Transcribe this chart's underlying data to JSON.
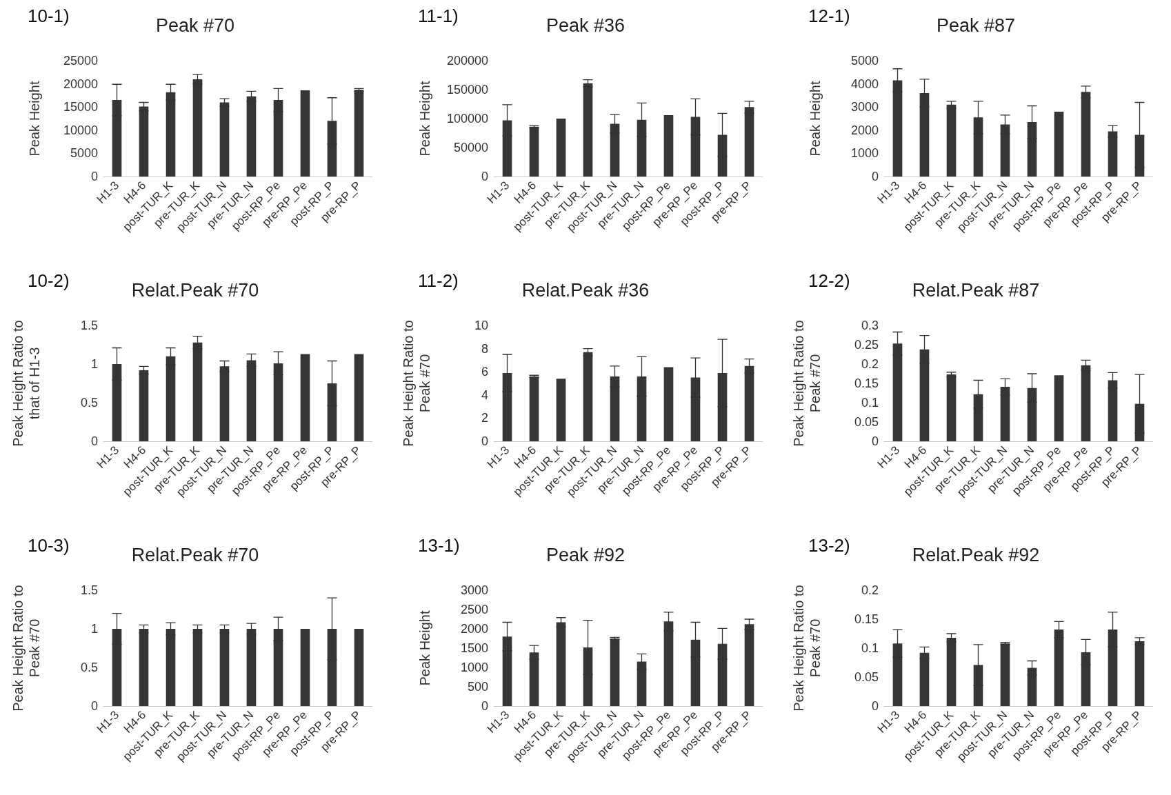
{
  "chart_data": [
    {
      "type": "bar",
      "title": "Peak #70",
      "annotations": [
        "10-1)"
      ],
      "ylabel": "Peak Height",
      "categories": [
        "H1-3",
        "H4-6",
        "post-TUR_K",
        "pre-TUR_K",
        "post-TUR_N",
        "pre-TUR_N",
        "post-RP_Pe",
        "pre-RP_Pe",
        "post-RP_P",
        "pre-RP_P"
      ],
      "color": "#363636",
      "values": [
        16500,
        15100,
        18200,
        21000,
        16000,
        17300,
        16500,
        18600,
        12000,
        18700
      ],
      "errors": [
        3400,
        900,
        1700,
        1000,
        800,
        1100,
        2500,
        null,
        5000,
        300
      ],
      "ylim": [
        0,
        25000
      ],
      "yticks": [
        0,
        5000,
        10000,
        15000,
        20000,
        25000
      ]
    },
    {
      "type": "bar",
      "title": "Peak #36",
      "annotations": [
        "11-1)"
      ],
      "ylabel": "Peak Height",
      "categories": [
        "H1-3",
        "H4-6",
        "post-TUR_K",
        "pre-TUR_K",
        "post-TUR_N",
        "pre-TUR_N",
        "post-RP_Pe",
        "pre-RP_Pe",
        "post-RP_P",
        "pre-RP_P"
      ],
      "color": "#363636",
      "values": [
        97000,
        86000,
        100000,
        161000,
        91000,
        98000,
        106000,
        103000,
        72000,
        120000
      ],
      "errors": [
        27000,
        2000,
        null,
        6000,
        16000,
        29000,
        null,
        31000,
        37000,
        10000
      ],
      "ylim": [
        0,
        200000
      ],
      "yticks": [
        0,
        50000,
        100000,
        150000,
        200000
      ]
    },
    {
      "type": "bar",
      "title": "Peak #87",
      "annotations": [
        "12-1)"
      ],
      "ylabel": "Peak Height",
      "categories": [
        "H1-3",
        "H4-6",
        "post-TUR_K",
        "pre-TUR_K",
        "post-TUR_N",
        "pre-TUR_N",
        "post-RP_Pe",
        "pre-RP_Pe",
        "post-RP_P",
        "pre-RP_P"
      ],
      "color": "#363636",
      "values": [
        4150,
        3600,
        3100,
        2550,
        2250,
        2350,
        2800,
        3650,
        1950,
        1800
      ],
      "errors": [
        500,
        600,
        150,
        700,
        400,
        700,
        null,
        250,
        250,
        1400
      ],
      "ylim": [
        0,
        5000
      ],
      "yticks": [
        0,
        1000,
        2000,
        3000,
        4000,
        5000
      ]
    },
    {
      "type": "bar",
      "title": "Relat.Peak #70",
      "annotations": [
        "10-2)"
      ],
      "ylabel": "Peak Height Ratio to\nthat of H1-3",
      "categories": [
        "H1-3",
        "H4-6",
        "post-TUR_K",
        "pre-TUR_K",
        "post-TUR_N",
        "pre-TUR_N",
        "post-RP_Pe",
        "pre-RP_Pe",
        "post-RP_P",
        "pre-RP_P"
      ],
      "color": "#363636",
      "values": [
        1.0,
        0.92,
        1.1,
        1.28,
        0.97,
        1.05,
        1.01,
        1.13,
        0.75,
        1.13
      ],
      "errors": [
        0.21,
        0.05,
        0.11,
        0.08,
        0.07,
        0.08,
        0.15,
        null,
        0.29,
        null
      ],
      "ylim": [
        0,
        1.5
      ],
      "yticks": [
        0,
        0.5,
        1,
        1.5
      ]
    },
    {
      "type": "bar",
      "title": "Relat.Peak #36",
      "annotations": [
        "11-2)"
      ],
      "ylabel": "Peak Height Ratio to\nPeak #70",
      "categories": [
        "H1-3",
        "H4-6",
        "post-TUR_K",
        "pre-TUR_K",
        "post-TUR_N",
        "pre-TUR_N",
        "post-RP_Pe",
        "pre-RP_Pe",
        "post-RP_P",
        "pre-RP_P"
      ],
      "color": "#363636",
      "values": [
        5.9,
        5.6,
        5.4,
        7.7,
        5.6,
        5.6,
        6.4,
        5.5,
        5.9,
        6.5
      ],
      "errors": [
        1.6,
        0.1,
        null,
        0.3,
        0.9,
        1.7,
        null,
        1.7,
        2.9,
        0.6
      ],
      "ylim": [
        0,
        10
      ],
      "yticks": [
        0,
        2,
        4,
        6,
        8,
        10
      ]
    },
    {
      "type": "bar",
      "title": "Relat.Peak #87",
      "annotations": [
        "12-2)"
      ],
      "ylabel": "Peak Height Ratio to\nPeak #70",
      "categories": [
        "H1-3",
        "H4-6",
        "post-TUR_K",
        "pre-TUR_K",
        "post-TUR_N",
        "pre-TUR_N",
        "post-RP_Pe",
        "pre-RP_Pe",
        "post-RP_P",
        "pre-RP_P"
      ],
      "color": "#363636",
      "values": [
        0.253,
        0.238,
        0.173,
        0.122,
        0.141,
        0.138,
        0.171,
        0.197,
        0.158,
        0.097
      ],
      "errors": [
        0.03,
        0.036,
        0.006,
        0.036,
        0.021,
        0.037,
        null,
        0.013,
        0.02,
        0.076
      ],
      "ylim": [
        0,
        0.3
      ],
      "yticks": [
        0,
        0.05,
        0.1,
        0.15,
        0.2,
        0.25,
        0.3
      ]
    },
    {
      "type": "bar",
      "title": "Relat.Peak #70",
      "annotations": [
        "10-3)"
      ],
      "ylabel": "Peak Height Ratio to\nPeak #70",
      "categories": [
        "H1-3",
        "H4-6",
        "post-TUR_K",
        "pre-TUR_K",
        "post-TUR_N",
        "pre-TUR_N",
        "post-RP_Pe",
        "pre-RP_Pe",
        "post-RP_P",
        "pre-RP_P"
      ],
      "color": "#363636",
      "values": [
        1,
        1,
        1,
        1,
        1,
        1,
        1,
        1,
        1,
        1
      ],
      "errors": [
        0.2,
        0.05,
        0.08,
        0.05,
        0.05,
        0.07,
        0.15,
        null,
        0.4,
        null
      ],
      "ylim": [
        0,
        1.5
      ],
      "yticks": [
        0,
        0.5,
        1,
        1.5
      ]
    },
    {
      "type": "bar",
      "title": "Peak #92",
      "annotations": [
        "13-1)"
      ],
      "ylabel": "Peak Height",
      "categories": [
        "H1-3",
        "H4-6",
        "post-TUR_K",
        "pre-TUR_K",
        "post-TUR_N",
        "pre-TUR_N",
        "post-RP_Pe",
        "pre-RP_Pe",
        "post-RP_P",
        "pre-RP_P"
      ],
      "color": "#363636",
      "values": [
        1800,
        1390,
        2170,
        1520,
        1750,
        1150,
        2190,
        1720,
        1610,
        2120
      ],
      "errors": [
        370,
        180,
        120,
        700,
        30,
        200,
        240,
        450,
        400,
        130
      ],
      "ylim": [
        0,
        3000
      ],
      "yticks": [
        0,
        500,
        1000,
        1500,
        2000,
        2500,
        3000
      ]
    },
    {
      "type": "bar",
      "title": "Relat.Peak #92",
      "annotations": [
        "13-2)"
      ],
      "ylabel": "Peak Height Ratio to\nPeak #70",
      "categories": [
        "H1-3",
        "H4-6",
        "post-TUR_K",
        "pre-TUR_K",
        "post-TUR_N",
        "pre-TUR_N",
        "post-RP_Pe",
        "pre-RP_Pe",
        "post-RP_P",
        "pre-RP_P"
      ],
      "color": "#363636",
      "values": [
        0.108,
        0.092,
        0.118,
        0.071,
        0.108,
        0.066,
        0.132,
        0.093,
        0.132,
        0.112
      ],
      "errors": [
        0.024,
        0.01,
        0.007,
        0.035,
        0.002,
        0.012,
        0.014,
        0.022,
        0.03,
        0.006
      ],
      "ylim": [
        0,
        0.2
      ],
      "yticks": [
        0,
        0.05,
        0.1,
        0.15,
        0.2
      ]
    }
  ]
}
